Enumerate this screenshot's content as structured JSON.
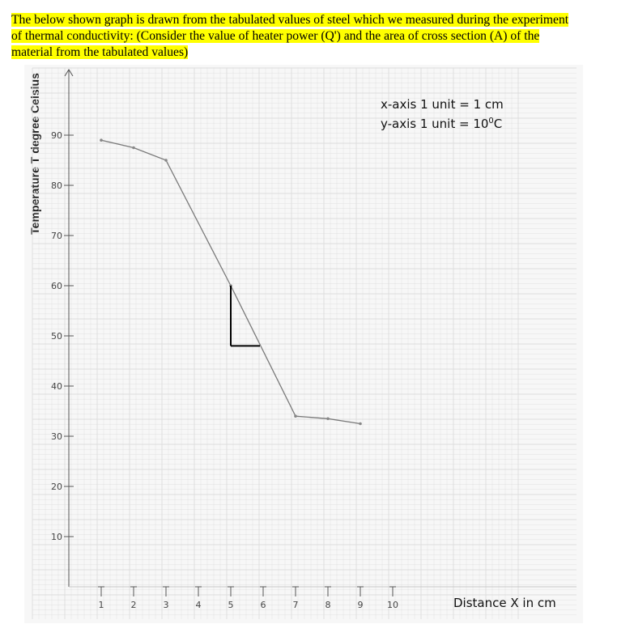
{
  "caption": {
    "line1": "The below shown graph is drawn from the tabulated values of steel which we measured during the experiment",
    "line2": "of thermal conductivity: (Consider the value of heater power (Q') and the area of cross section (A) of the",
    "line3": "material from the tabulated values)"
  },
  "scale_notes": {
    "x": "x-axis  1 unit = 1 cm",
    "y_prefix": "y-axis  1 unit = 10",
    "y_sup": "0",
    "y_suffix": "C"
  },
  "colors": {
    "highlight": "#ffff00",
    "grid": "#dcdcdc",
    "line": "#7a7a7a"
  },
  "chart_data": {
    "type": "line",
    "xlabel": "Distance X in cm",
    "ylabel": "Temperature T degree Celsius",
    "x_ticks": [
      1,
      2,
      3,
      4,
      5,
      6,
      7,
      8,
      9,
      10
    ],
    "y_ticks": [
      10,
      20,
      30,
      40,
      50,
      60,
      70,
      80,
      90
    ],
    "xlim": [
      0,
      11
    ],
    "ylim": [
      0,
      100
    ],
    "grid": true,
    "series": [
      {
        "x": [
          1,
          2,
          3,
          5,
          7,
          8,
          9
        ],
        "y": [
          89,
          87.5,
          85,
          60,
          34,
          33.5,
          32.5
        ]
      }
    ],
    "annotations": [
      {
        "type": "slope-triangle",
        "vertical": {
          "x": 5,
          "y1": 60,
          "y2": 48
        },
        "horizontal": {
          "y": 48,
          "x1": 5,
          "x2": 5.9
        }
      }
    ]
  }
}
